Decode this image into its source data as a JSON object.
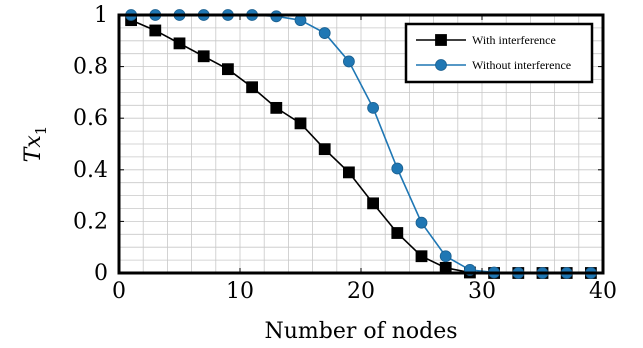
{
  "chart_data": {
    "type": "line",
    "title": "",
    "xlabel": "Number of nodes",
    "ylabel_base": "Tx",
    "ylabel_sub": "1",
    "xlim": [
      0,
      40
    ],
    "ylim": [
      0,
      1
    ],
    "x_ticks": [
      0,
      10,
      20,
      30,
      40
    ],
    "y_ticks": [
      0,
      0.2,
      0.4,
      0.6,
      0.8,
      1
    ],
    "x_tick_labels": [
      "0",
      "10",
      "20",
      "30",
      "40"
    ],
    "y_tick_labels": [
      "0",
      "0.2",
      "0.4",
      "0.6",
      "0.8",
      "1"
    ],
    "grid": true,
    "legend_position": "top-right",
    "x": [
      1,
      3,
      5,
      7,
      9,
      11,
      13,
      15,
      17,
      19,
      21,
      23,
      25,
      27,
      29,
      31,
      33,
      35,
      37,
      39
    ],
    "series": [
      {
        "name": "With interference",
        "color": "#000000",
        "marker": "square",
        "values": [
          0.98,
          0.94,
          0.89,
          0.84,
          0.79,
          0.72,
          0.64,
          0.58,
          0.48,
          0.39,
          0.27,
          0.155,
          0.065,
          0.02,
          0.002,
          0,
          0,
          0,
          0,
          0
        ]
      },
      {
        "name": "Without interference",
        "color": "#1f77b4",
        "marker": "circle",
        "values": [
          1,
          1,
          1,
          1,
          1,
          1,
          0.995,
          0.98,
          0.93,
          0.82,
          0.64,
          0.405,
          0.195,
          0.065,
          0.012,
          0.002,
          0,
          0,
          0,
          0
        ]
      }
    ]
  }
}
